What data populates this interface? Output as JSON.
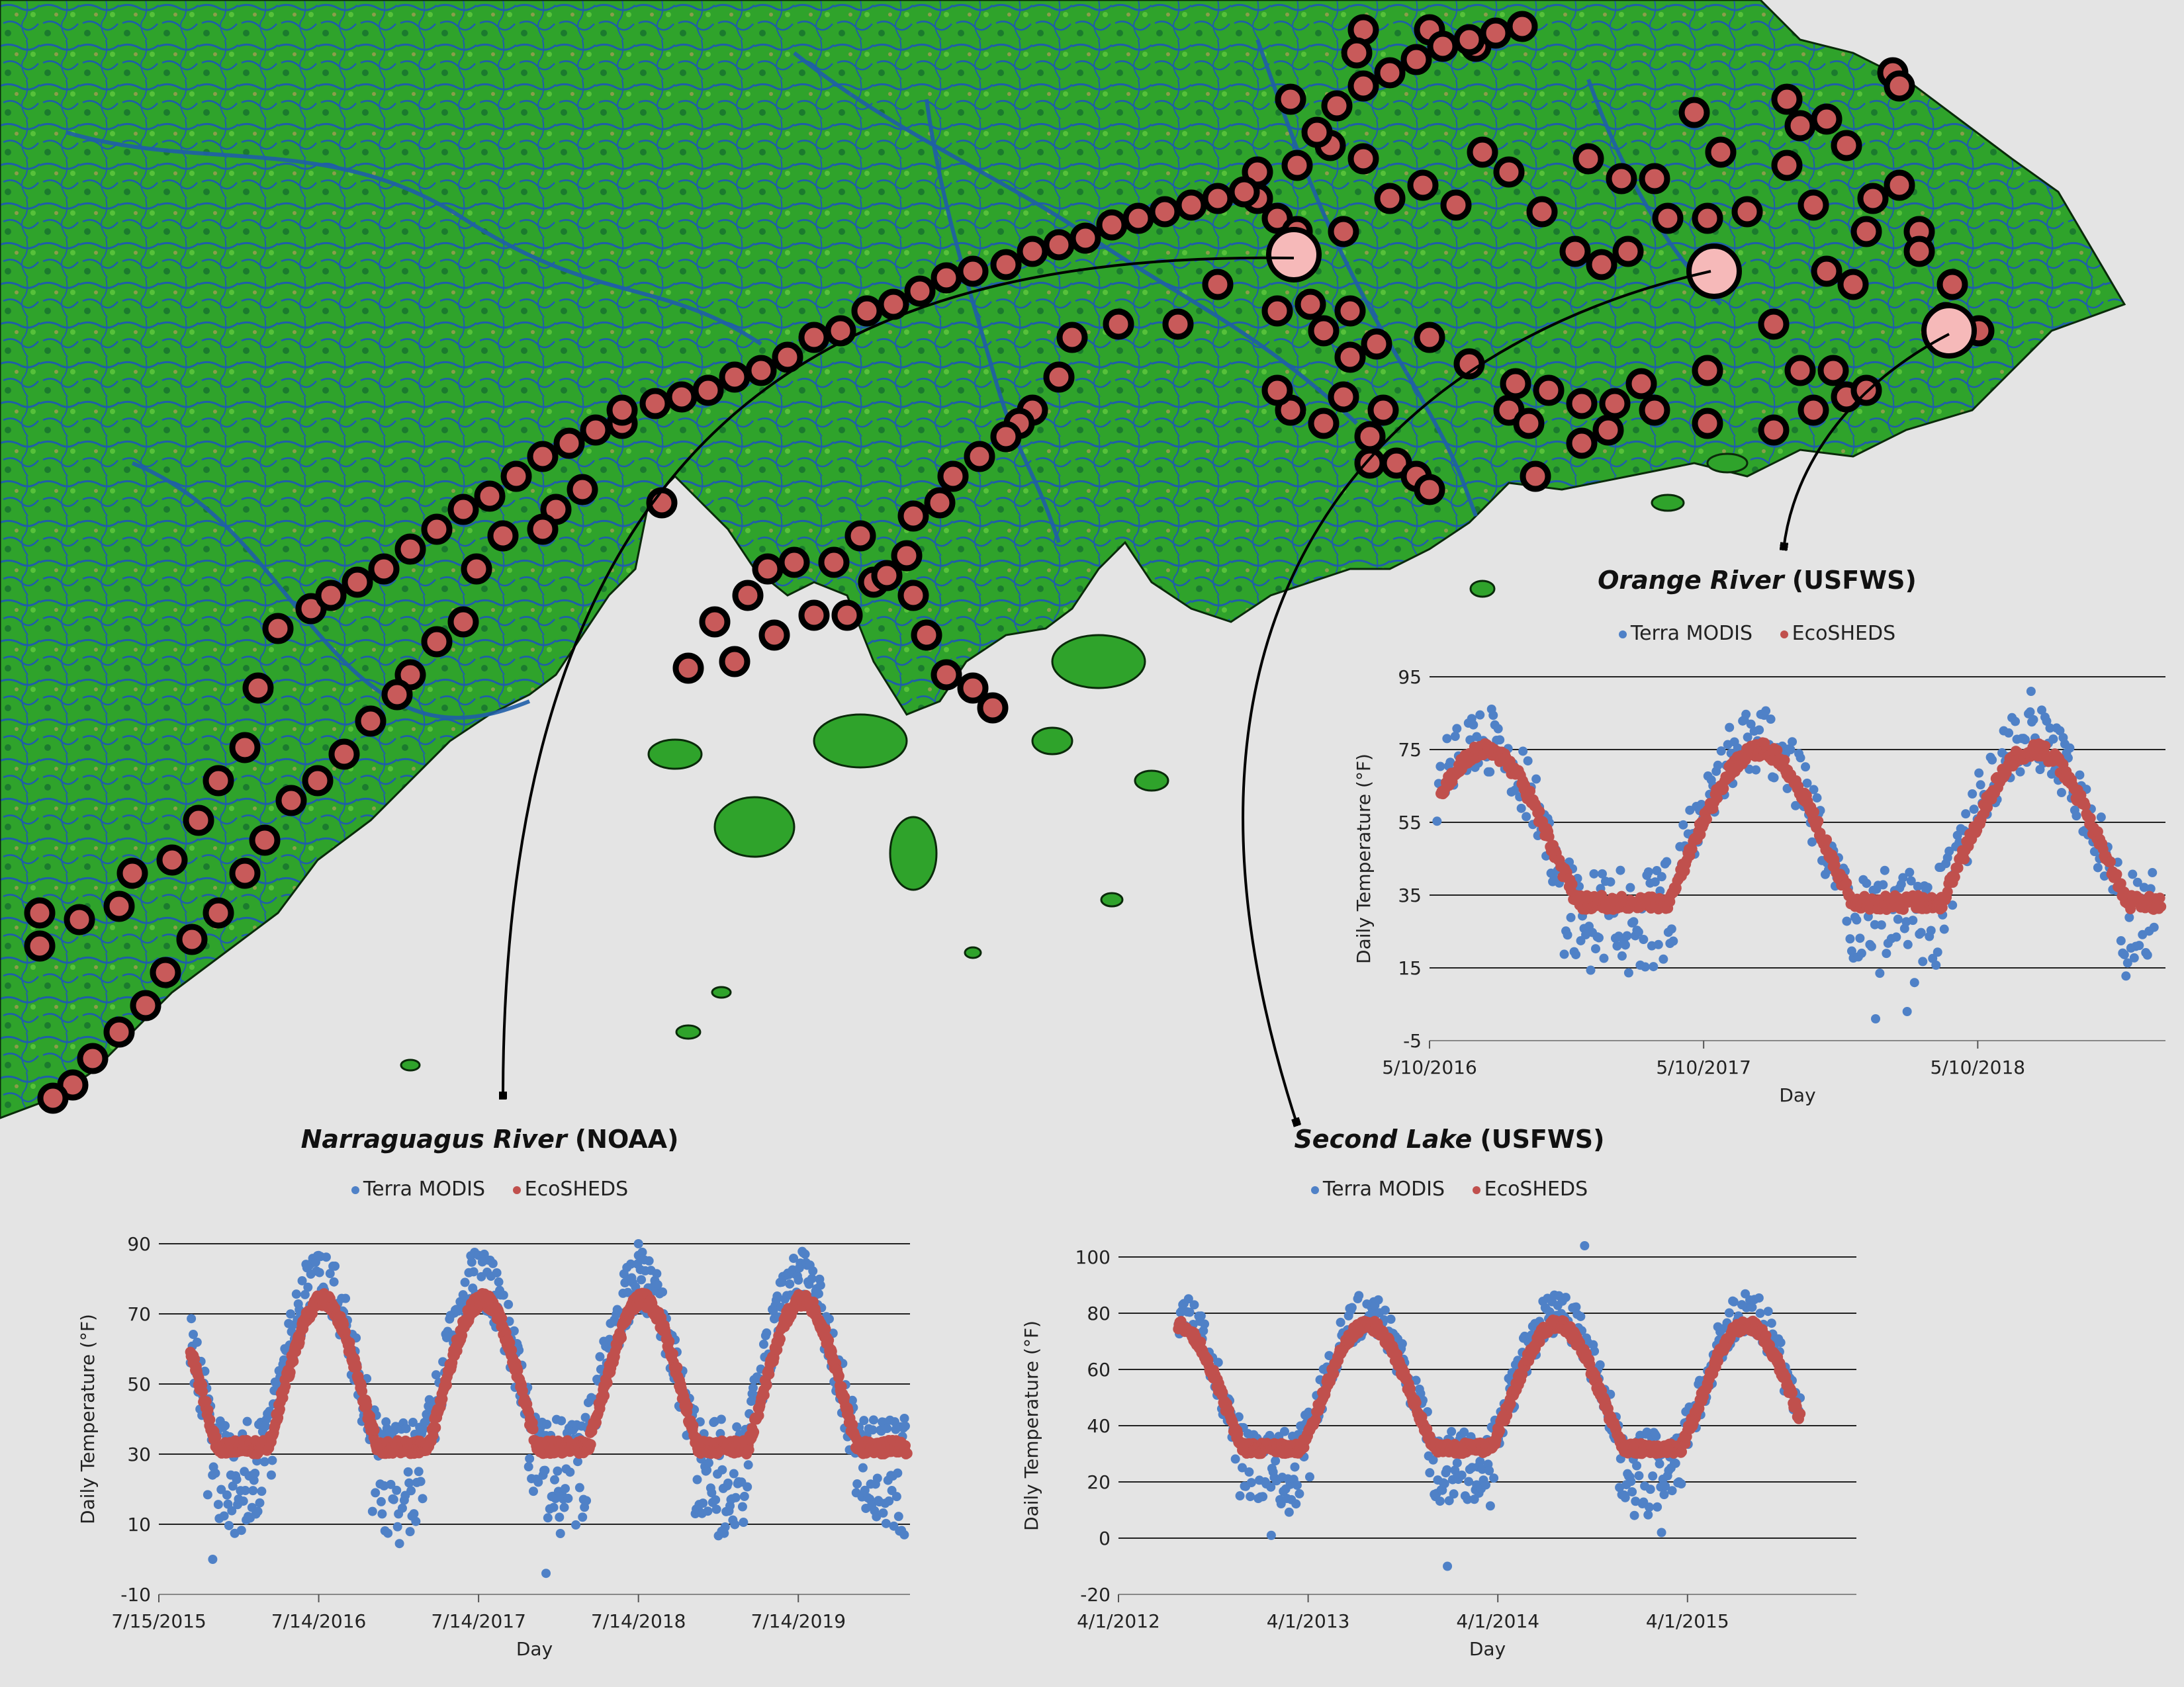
{
  "colors": {
    "background": "#e4e4e4",
    "land_green": "#2fa32b",
    "land_dark": "#145c27",
    "river_blue": "#1f5ea8",
    "site_marker": "#c85a5a",
    "site_marker_highlight": "#f6b9b9",
    "terra_modis": "#4f81c7",
    "ecosheds": "#c0504d"
  },
  "map": {
    "marker_style": "circle-with-black-outline",
    "arrows": [
      {
        "from": "highlight-site-1",
        "to": "narraguagus-chart"
      },
      {
        "from": "highlight-site-2",
        "to": "second-lake-chart"
      },
      {
        "from": "highlight-site-3",
        "to": "orange-river-chart"
      }
    ]
  },
  "legend": {
    "terra": "Terra MODIS",
    "ecosheds": "EcoSHEDS"
  },
  "chart_data": [
    {
      "id": "orange",
      "type": "scatter",
      "site_name": "Orange River",
      "agency": "(USFWS)",
      "xlabel": "Day",
      "ylabel": "Daily Temperature (°F)",
      "x_tick_labels": [
        "5/10/2016",
        "5/10/2017",
        "5/10/2018"
      ],
      "x_range": [
        "2016-05-10",
        "2019-01-15"
      ],
      "y_ticks": [
        -5,
        15,
        35,
        55,
        75,
        95
      ],
      "ylim": [
        -5,
        95
      ],
      "grid": "horizontal",
      "legend_position": "top",
      "series": [
        {
          "name": "Terra MODIS",
          "seasonal": {
            "start": "2016-05-20",
            "end": "2019-01-01",
            "peak_day_of_year": 200,
            "summer": 78,
            "winter_floor": 33,
            "spread": 9,
            "winter_dip": 14,
            "outliers": [
              {
                "date": "2017-12-25",
                "value": 1
              },
              {
                "date": "2018-02-05",
                "value": 3
              },
              {
                "date": "2018-07-20",
                "value": 91
              }
            ]
          }
        },
        {
          "name": "EcoSHEDS",
          "seasonal": {
            "start": "2016-05-25",
            "end": "2019-01-10",
            "peak_day_of_year": 205,
            "summer": 75,
            "winter_floor": 33,
            "spread": 2
          }
        }
      ]
    },
    {
      "id": "narraguagus",
      "type": "scatter",
      "site_name": "Narraguagus River",
      "agency": "(NOAA)",
      "xlabel": "Day",
      "ylabel": "Daily Temperature (°F)",
      "x_tick_labels": [
        "7/15/2015",
        "7/14/2016",
        "7/14/2017",
        "7/14/2018",
        "7/14/2019"
      ],
      "x_range": [
        "2015-07-15",
        "2020-03-25"
      ],
      "y_ticks": [
        -10,
        10,
        30,
        50,
        70,
        90
      ],
      "ylim": [
        -10,
        90
      ],
      "grid": "horizontal",
      "legend_position": "top",
      "series": [
        {
          "name": "Terra MODIS",
          "seasonal": {
            "start": "2015-09-25",
            "end": "2020-03-15",
            "peak_day_of_year": 200,
            "summer": 80,
            "winter_floor": 31,
            "spread": 9,
            "winter_dip": 18,
            "outliers": [
              {
                "date": "2015-11-15",
                "value": 0
              },
              {
                "date": "2017-12-15",
                "value": -4
              },
              {
                "date": "2018-07-14",
                "value": 90
              },
              {
                "date": "2019-01-20",
                "value": 8
              },
              {
                "date": "2020-03-12",
                "value": 7
              }
            ]
          }
        },
        {
          "name": "EcoSHEDS",
          "seasonal": {
            "start": "2015-09-25",
            "end": "2020-03-20",
            "peak_day_of_year": 205,
            "summer": 74,
            "winter_floor": 32,
            "spread": 2
          }
        }
      ]
    },
    {
      "id": "secondlake",
      "type": "scatter",
      "site_name": "Second Lake",
      "agency": "(USFWS)",
      "xlabel": "Day",
      "ylabel": "Daily Temperature (°F)",
      "x_tick_labels": [
        "4/1/2012",
        "4/1/2013",
        "4/1/2014",
        "4/1/2015"
      ],
      "x_range": [
        "2012-04-01",
        "2016-02-20"
      ],
      "y_ticks": [
        -20,
        0,
        20,
        40,
        60,
        80,
        100
      ],
      "ylim": [
        -20,
        100
      ],
      "grid": "horizontal",
      "legend_position": "top",
      "series": [
        {
          "name": "Terra MODIS",
          "seasonal": {
            "start": "2012-07-25",
            "end": "2015-11-05",
            "peak_day_of_year": 205,
            "summer": 80,
            "winter_floor": 30,
            "spread": 8,
            "winter_dip": 16,
            "outliers": [
              {
                "date": "2013-01-20",
                "value": 1
              },
              {
                "date": "2013-12-25",
                "value": -10
              },
              {
                "date": "2014-09-15",
                "value": 104
              },
              {
                "date": "2015-02-10",
                "value": 2
              }
            ]
          }
        },
        {
          "name": "EcoSHEDS",
          "seasonal": {
            "start": "2012-07-25",
            "end": "2015-11-05",
            "peak_day_of_year": 205,
            "summer": 76,
            "winter_floor": 32,
            "spread": 2
          }
        }
      ]
    }
  ]
}
